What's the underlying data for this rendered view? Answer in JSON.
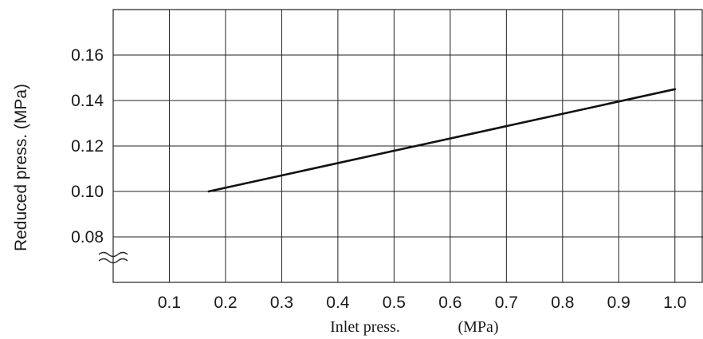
{
  "chart_data": {
    "type": "line",
    "xlabel": "Inlet press.",
    "xunit": "(MPa)",
    "ylabel": "Reduced press. (MPa)",
    "xlim": [
      0.0,
      1.05
    ],
    "ylim": [
      0.06,
      0.18
    ],
    "x_ticks": [
      "0.1",
      "0.2",
      "0.3",
      "0.4",
      "0.5",
      "0.6",
      "0.7",
      "0.8",
      "0.9",
      "1.0"
    ],
    "y_ticks": [
      "0.08",
      "0.10",
      "0.12",
      "0.14",
      "0.16"
    ],
    "y_axis_break": true,
    "grid": true,
    "series": [
      {
        "x": [
          0.17,
          1.0
        ],
        "y": [
          0.1,
          0.145
        ]
      }
    ]
  },
  "colors": {
    "line": "#111111",
    "grid": "#222222",
    "text": "#1a1a1a"
  }
}
